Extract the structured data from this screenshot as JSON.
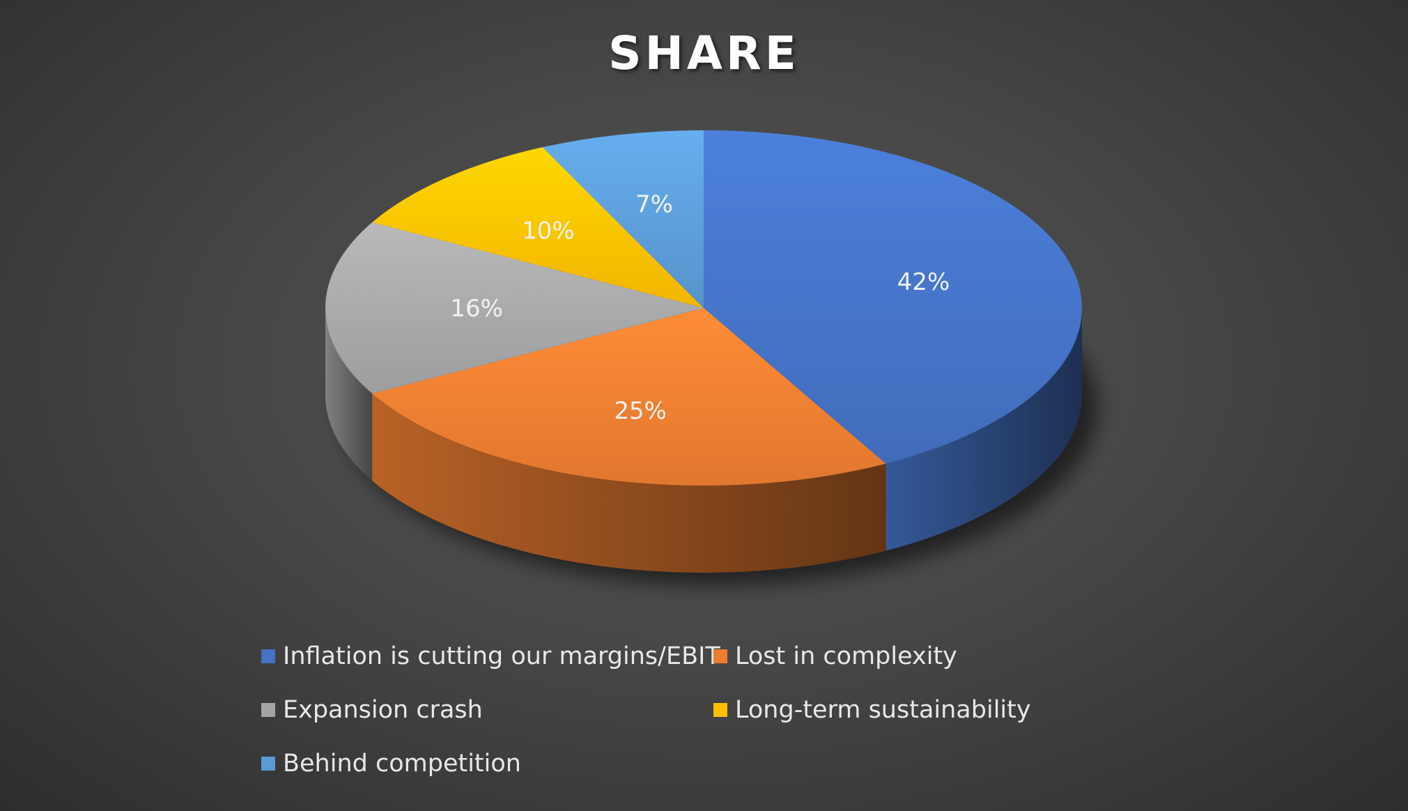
{
  "chart_data": {
    "type": "pie",
    "title": "SHARE",
    "categories": [
      "Inflation is cutting our margins/EBIT",
      "Lost in complexity",
      "Expansion crash",
      "Long-term sustainability",
      "Behind competition"
    ],
    "values": [
      42,
      25,
      16,
      10,
      7
    ],
    "data_labels": [
      "42%",
      "25%",
      "16%",
      "10%",
      "7%"
    ],
    "colors": [
      "#4472C4",
      "#ED7D31",
      "#A5A5A5",
      "#FFC000",
      "#5B9BD5"
    ],
    "legend_position": "bottom",
    "style": "3d-pie"
  }
}
